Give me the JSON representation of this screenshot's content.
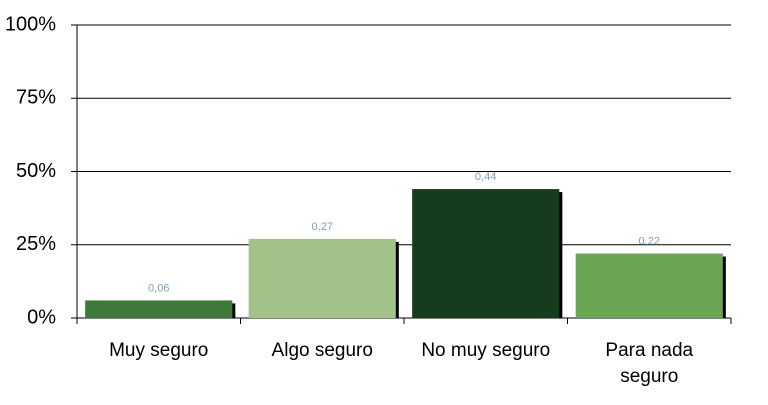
{
  "chart_data": {
    "type": "bar",
    "categories": [
      "Muy seguro",
      "Algo seguro",
      "No muy seguro",
      "Para nada seguro"
    ],
    "values": [
      6,
      27,
      44,
      22
    ],
    "value_labels": [
      "0,06",
      "0,27",
      "0,44",
      "0,22"
    ],
    "colors": [
      "#3f7a3a",
      "#a3c28a",
      "#163c1d",
      "#6aa553"
    ],
    "ylim": [
      0,
      100
    ],
    "yticks": [
      {
        "value": 0,
        "label": "0%"
      },
      {
        "value": 25,
        "label": "25%"
      },
      {
        "value": 50,
        "label": "50%"
      },
      {
        "value": 75,
        "label": "75%"
      },
      {
        "value": 100,
        "label": "100%"
      }
    ],
    "grid": true
  }
}
